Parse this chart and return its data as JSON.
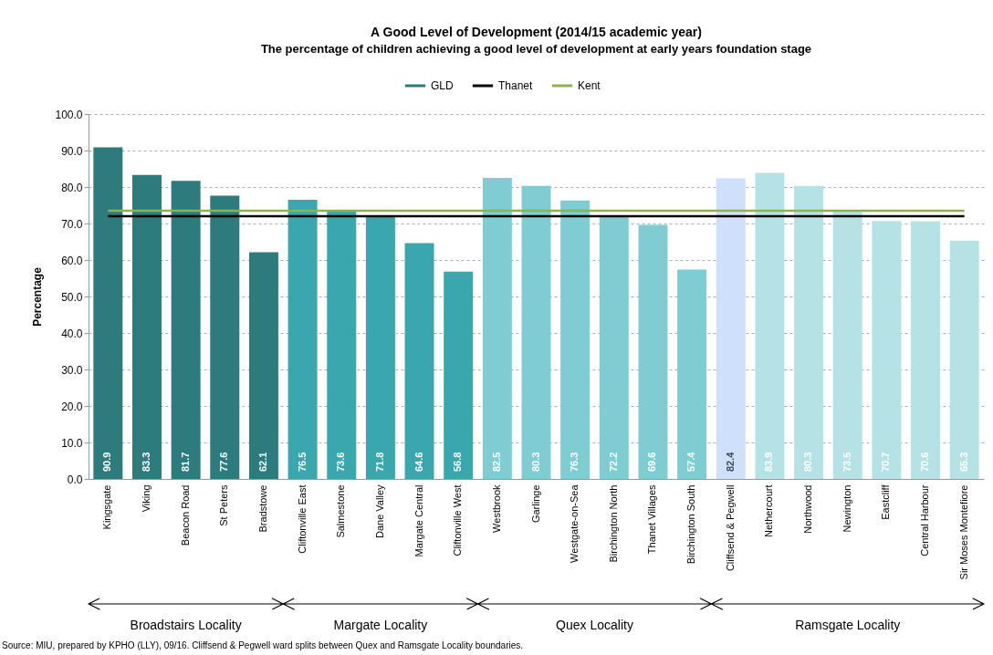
{
  "chart_data": {
    "type": "bar",
    "title": "A Good Level of Development (2014/15 academic year)",
    "subtitle": "The percentage of  children achieving a good level of development at early years foundation stage",
    "ylabel": "Percentage",
    "categories": [
      "Kingsgate",
      "Viking",
      "Beacon Road",
      "St Peters",
      "Bradstowe",
      "Cliftonville East",
      "Salmestone",
      "Dane Valley",
      "Margate Central",
      "Cliftonville West",
      "Westbrook",
      "Garlinge",
      "Westgate-on-Sea",
      "Birchington North",
      "Thanet Villages",
      "Birchington South",
      "Cliffsend & Pegwell",
      "Nethercourt",
      "Northwood",
      "Newington",
      "Eastcliff",
      "Central Harbour",
      "Sir Moses Montefiore"
    ],
    "series": [
      {
        "name": "GLD",
        "color": "#2e7b7d",
        "values": [
          90.9,
          83.3,
          81.7,
          77.6,
          62.1,
          76.5,
          73.6,
          71.8,
          64.6,
          56.8,
          82.5,
          80.3,
          76.3,
          72.2,
          69.6,
          57.4,
          82.4,
          83.9,
          80.3,
          73.5,
          70.7,
          70.6,
          65.3
        ],
        "value_labels": [
          "90.9",
          "83.3",
          "81.7",
          "77.6",
          "62.1",
          "76.5",
          "73.6",
          "71.8",
          "64.6",
          "56.8",
          "82.5",
          "80.3",
          "76.3",
          "72.2",
          "69.6",
          "57.4",
          "82.4",
          "83.9",
          "80.3",
          "73.5",
          "70.7",
          "70.6",
          "65.3"
        ],
        "colors": [
          "#2e7b7d",
          "#2e7b7d",
          "#2e7b7d",
          "#2e7b7d",
          "#2e7b7d",
          "#3aa6ae",
          "#3aa6ae",
          "#3aa6ae",
          "#3aa6ae",
          "#3aa6ae",
          "#7fcdd3",
          "#7fcdd3",
          "#7fcdd3",
          "#7fcdd3",
          "#7fcdd3",
          "#7fcdd3",
          "#cfe0fa",
          "#b5e3e5",
          "#b5e3e5",
          "#b5e3e5",
          "#b5e3e5",
          "#b5e3e5",
          "#b5e3e5"
        ]
      },
      {
        "name": "Thanet",
        "type": "line",
        "color": "#000000",
        "values": [
          72.0,
          72.0,
          72.0,
          72.0,
          72.0,
          72.0,
          72.0,
          72.0,
          72.0,
          72.0,
          72.0,
          72.0,
          72.0,
          72.0,
          72.0,
          72.0,
          72.0,
          72.0,
          72.0,
          72.0,
          72.0,
          72.0,
          72.0
        ]
      },
      {
        "name": "Kent",
        "type": "line",
        "color": "#8fb446",
        "values": [
          73.5,
          73.5,
          73.5,
          73.5,
          73.5,
          73.5,
          73.5,
          73.5,
          73.5,
          73.5,
          73.5,
          73.5,
          73.5,
          73.5,
          73.5,
          73.5,
          73.5,
          73.5,
          73.5,
          73.5,
          73.5,
          73.5,
          73.5
        ]
      }
    ],
    "ylim": [
      0,
      100
    ],
    "yticks": [
      {
        "value": 0,
        "label": "0.0"
      },
      {
        "value": 10,
        "label": "10.0"
      },
      {
        "value": 20,
        "label": "20.0"
      },
      {
        "value": 30,
        "label": "30.0"
      },
      {
        "value": 40,
        "label": "40.0"
      },
      {
        "value": 50,
        "label": "50.0"
      },
      {
        "value": 60,
        "label": "60.0"
      },
      {
        "value": 70,
        "label": "70.0"
      },
      {
        "value": 80,
        "label": "80.0"
      },
      {
        "value": 90,
        "label": "90.0"
      },
      {
        "value": 100,
        "label": "100.0"
      }
    ],
    "grid": "y",
    "legend": "top",
    "annotations": [
      "Broadstairs Locality",
      "Margate Locality",
      "Quex Locality",
      "Ramsgate Locality",
      "Source: MIU, prepared by KPHO (LLY), 09/16. Cliffsend & Pegwell ward  splits between Quex and Ramsgate  Locality boundaries."
    ]
  }
}
